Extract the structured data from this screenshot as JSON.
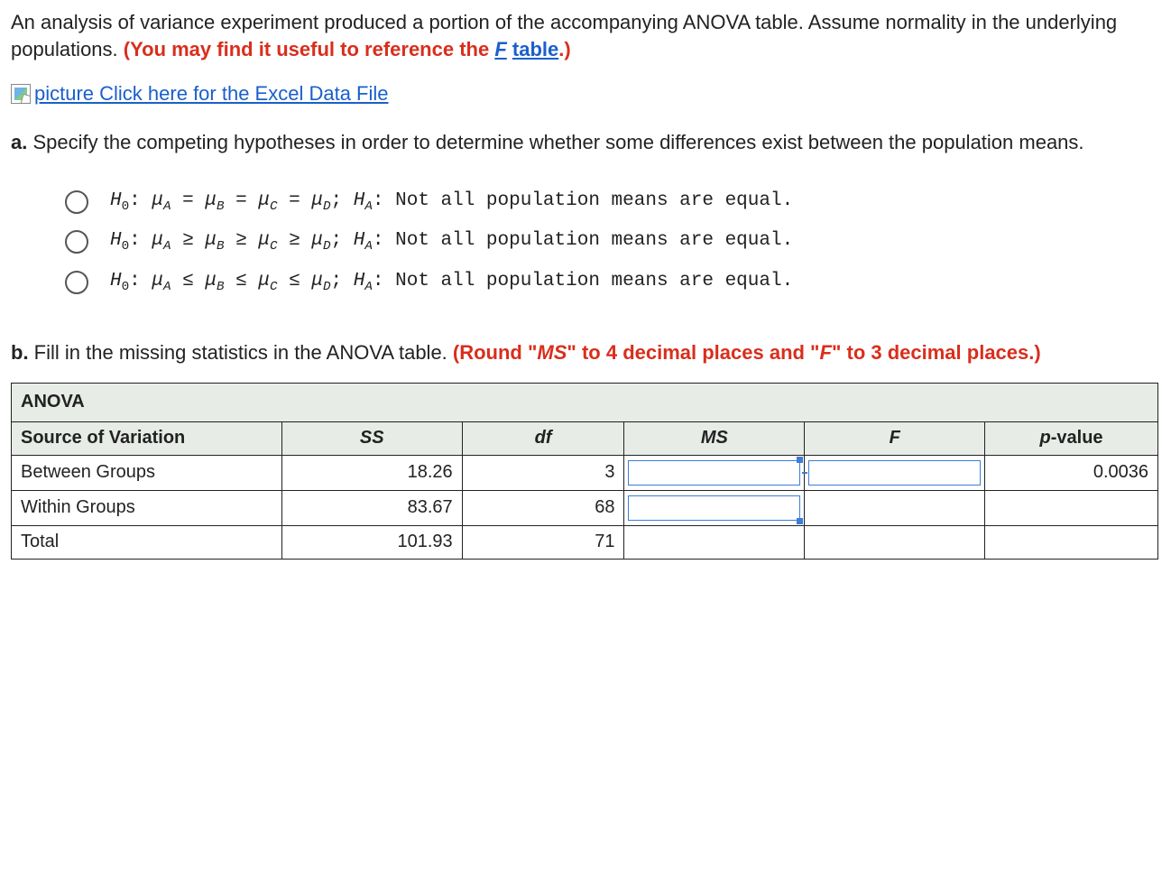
{
  "intro": {
    "text_before": "An analysis of variance experiment produced a portion of the accompanying ANOVA table. Assume normality in the underlying populations. ",
    "red_prefix": "(You may find it useful to reference the ",
    "f_link": "F",
    "table_link": "table",
    "red_suffix": ".)"
  },
  "excel_link": "picture Click here for the Excel Data File",
  "part_a": {
    "label": "a.",
    "text": " Specify the competing hypotheses in order to determine whether some differences exist between the population means."
  },
  "options": [
    {
      "h0": "H0: μA = μB = μC = μD; ",
      "ha": "HA: Not all population means are equal."
    },
    {
      "h0": "H0: μA ≥ μB ≥ μC ≥ μD; ",
      "ha": "HA: Not all population means are equal."
    },
    {
      "h0": "H0: μA ≤ μB ≤ μC ≤ μD; ",
      "ha": "HA: Not all population means are equal."
    }
  ],
  "part_b": {
    "label": "b.",
    "text_before": " Fill in the missing statistics in the ANOVA table. ",
    "red_text": "(Round \"MS\" to 4 decimal places and \"F\" to 3 decimal places.)"
  },
  "anova": {
    "title": "ANOVA",
    "headers": {
      "sov": "Source of Variation",
      "ss": "SS",
      "df": "df",
      "ms": "MS",
      "f": "F",
      "pvalue": "p-value"
    },
    "rows": {
      "between": {
        "label": "Between Groups",
        "ss": "18.26",
        "df": "3",
        "pvalue": "0.0036"
      },
      "within": {
        "label": "Within Groups",
        "ss": "83.67",
        "df": "68"
      },
      "total": {
        "label": "Total",
        "ss": "101.93",
        "df": "71"
      }
    },
    "colors": {
      "header_bg": "#e7ece7",
      "input_border": "#3b7dd8",
      "red": "#d92e1c",
      "link": "#1a5fcc",
      "border": "#222222"
    }
  }
}
